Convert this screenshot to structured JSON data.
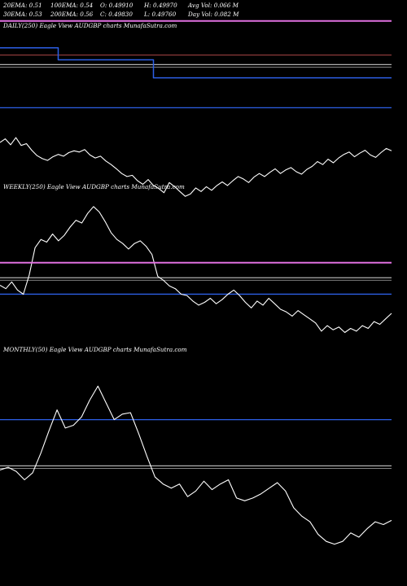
{
  "header": {
    "row1": [
      "20EMA: 0.51",
      "100EMA: 0.54",
      "O: 0.49910",
      "H: 0.49970",
      "Avg Vol: 0.066  M"
    ],
    "row2": [
      "30EMA: 0.53",
      "200EMA: 0.56",
      "C: 0.49830",
      "L: 0.49760",
      "Day Vol: 0.082  M"
    ]
  },
  "panels": {
    "daily_label": "DAILY(250) Eagle  View  AUDGBP charts MunafaSutra.com",
    "weekly_label": "WEEKLY(250) Eagle  View  AUDGBP charts MunafaSutra.com",
    "monthly_label": "MONTHLY(50) Eagle  View  AUDGBP charts MunafaSutra.com"
  },
  "colors": {
    "background": "#000000",
    "price": "#ffffff",
    "ema_blue": "#2c5fe6",
    "ema_magenta": "#e070e0",
    "ema_brown": "#8b3a3a",
    "ema_gray": "#b0b0b0"
  },
  "chart_data": [
    {
      "type": "line",
      "panel": "daily",
      "series": [
        {
          "role": "price",
          "values": [
            0.5402,
            0.5408,
            0.5398,
            0.541,
            0.5397,
            0.54,
            0.5389,
            0.538,
            0.5375,
            0.5372,
            0.5378,
            0.5382,
            0.5379,
            0.5385,
            0.5388,
            0.5386,
            0.539,
            0.5381,
            0.5376,
            0.5379,
            0.5371,
            0.5365,
            0.5358,
            0.535,
            0.5345,
            0.5347,
            0.5338,
            0.5332,
            0.534,
            0.533,
            0.5325,
            0.5318,
            0.5335,
            0.5328,
            0.532,
            0.5312,
            0.5316,
            0.5326,
            0.532,
            0.5328,
            0.5322,
            0.533,
            0.5336,
            0.533,
            0.5338,
            0.5345,
            0.5341,
            0.5335,
            0.5344,
            0.535,
            0.5345,
            0.5352,
            0.5358,
            0.535,
            0.5356,
            0.536,
            0.5353,
            0.5349,
            0.5357,
            0.5362,
            0.537,
            0.5365,
            0.5374,
            0.5368,
            0.5376,
            0.5382,
            0.5386,
            0.5378,
            0.5384,
            0.5389,
            0.5381,
            0.5377,
            0.5385,
            0.5392,
            0.5388
          ]
        },
        {
          "role": "ema-step",
          "values": [
            0.556,
            0.556,
            0.556,
            0.556,
            0.556,
            0.556,
            0.556,
            0.556,
            0.556,
            0.556,
            0.556,
            0.554,
            0.554,
            0.554,
            0.554,
            0.554,
            0.554,
            0.554,
            0.554,
            0.554,
            0.554,
            0.554,
            0.554,
            0.554,
            0.554,
            0.554,
            0.554,
            0.554,
            0.554,
            0.551,
            0.551,
            0.551,
            0.551,
            0.551,
            0.551,
            0.551,
            0.551,
            0.551,
            0.551,
            0.551,
            0.551,
            0.551,
            0.551,
            0.551,
            0.551,
            0.551,
            0.551,
            0.551,
            0.551,
            0.551,
            0.551,
            0.551,
            0.551,
            0.551,
            0.551,
            0.551,
            0.551,
            0.551,
            0.551,
            0.551,
            0.551,
            0.551,
            0.551,
            0.551,
            0.551,
            0.551,
            0.551,
            0.551,
            0.551,
            0.551,
            0.551,
            0.551,
            0.551,
            0.551,
            0.551
          ]
        }
      ],
      "levels": [
        {
          "name": "magenta",
          "y": 0.5605
        },
        {
          "name": "brown",
          "y": 0.5548
        },
        {
          "name": "gray",
          "y": 0.5532
        },
        {
          "name": "blue",
          "y": 0.546
        }
      ],
      "ylim": [
        0.53,
        0.564
      ]
    },
    {
      "type": "line",
      "panel": "weekly",
      "series": [
        {
          "role": "price",
          "values": [
            0.5385,
            0.538,
            0.539,
            0.5378,
            0.5372,
            0.54,
            0.544,
            0.5452,
            0.5448,
            0.546,
            0.545,
            0.5458,
            0.547,
            0.548,
            0.5476,
            0.549,
            0.55,
            0.5492,
            0.5478,
            0.5462,
            0.5452,
            0.5446,
            0.5438,
            0.5446,
            0.545,
            0.5442,
            0.543,
            0.5398,
            0.5392,
            0.5384,
            0.538,
            0.5372,
            0.537,
            0.5362,
            0.5356,
            0.536,
            0.5366,
            0.5358,
            0.5364,
            0.5372,
            0.5378,
            0.537,
            0.536,
            0.5352,
            0.5362,
            0.5356,
            0.5366,
            0.5358,
            0.535,
            0.5346,
            0.534,
            0.5348,
            0.5342,
            0.5336,
            0.533,
            0.5318,
            0.5326,
            0.532,
            0.5324,
            0.5316,
            0.5322,
            0.5318,
            0.5326,
            0.5322,
            0.5332,
            0.5328,
            0.5336,
            0.5344
          ]
        },
        {
          "role": "ema-magenta",
          "values": [
            0.5418,
            0.5418,
            0.5418,
            0.5418,
            0.5418,
            0.5418,
            0.5418,
            0.5418,
            0.5418,
            0.5418,
            0.5418,
            0.5418,
            0.5418,
            0.5418,
            0.5418,
            0.5418,
            0.5418,
            0.5418,
            0.5418,
            0.5418,
            0.5418,
            0.5418,
            0.5418,
            0.5418,
            0.5418,
            0.5418,
            0.5418,
            0.5418,
            0.5418,
            0.5418,
            0.5418,
            0.5418,
            0.5418,
            0.5418,
            0.5418,
            0.5418,
            0.5418,
            0.5418,
            0.5418,
            0.5418,
            0.5418,
            0.5418,
            0.5418,
            0.5418,
            0.5418,
            0.5418,
            0.5418,
            0.5418,
            0.5418,
            0.5418,
            0.5418,
            0.5418,
            0.5418,
            0.5418,
            0.5418,
            0.5418,
            0.5418,
            0.5418,
            0.5418,
            0.5418,
            0.5418,
            0.5418,
            0.5418,
            0.5418,
            0.5418,
            0.5418,
            0.5418,
            0.5418
          ]
        }
      ],
      "levels": [
        {
          "name": "gray",
          "y": 0.5396
        },
        {
          "name": "blue",
          "y": 0.5372
        }
      ],
      "ylim": [
        0.53,
        0.552
      ]
    },
    {
      "type": "line",
      "panel": "monthly",
      "series": [
        {
          "role": "price",
          "values": [
            0.56,
            0.562,
            0.559,
            0.553,
            0.558,
            0.572,
            0.588,
            0.603,
            0.59,
            0.592,
            0.598,
            0.61,
            0.62,
            0.608,
            0.596,
            0.6,
            0.601,
            0.586,
            0.57,
            0.555,
            0.55,
            0.547,
            0.55,
            0.541,
            0.545,
            0.552,
            0.546,
            0.55,
            0.553,
            0.54,
            0.538,
            0.54,
            0.543,
            0.547,
            0.551,
            0.545,
            0.533,
            0.527,
            0.523,
            0.514,
            0.509,
            0.507,
            0.509,
            0.515,
            0.512,
            0.518,
            0.523,
            0.521,
            0.524
          ]
        }
      ],
      "levels": [
        {
          "name": "blue",
          "y": 0.596
        },
        {
          "name": "gray",
          "y": 0.563
        }
      ],
      "ylim": [
        0.48,
        0.64
      ]
    }
  ]
}
